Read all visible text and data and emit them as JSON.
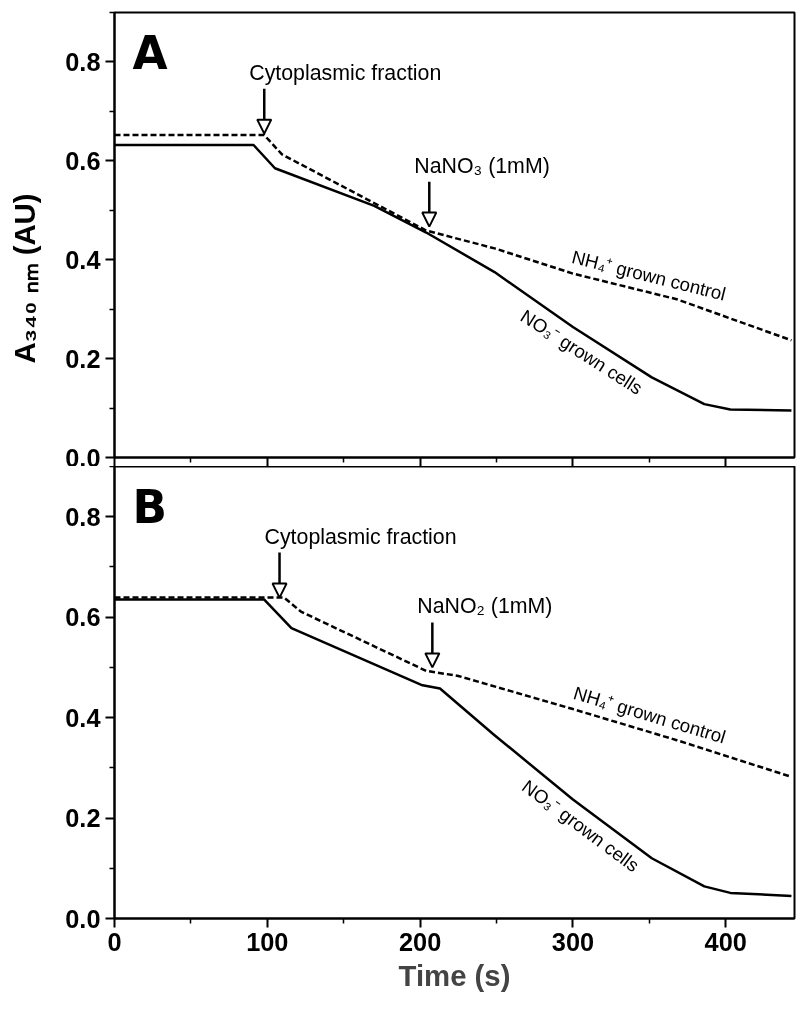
{
  "chart_data": [
    {
      "type": "line",
      "xlim": [
        0,
        445
      ],
      "ylim": [
        0,
        0.9
      ],
      "xticks": [
        0,
        100,
        200,
        300,
        400
      ],
      "yticks": [
        {
          "value": 0,
          "label": "0.0"
        },
        0.2,
        0.4,
        0.6,
        0.8
      ],
      "tick_labels": "y",
      "grid": false,
      "marker": "none",
      "ylabel": "A₃₄₀ ₙₘ (AU)",
      "series": [
        {
          "name": "NH₄⁺ grown control",
          "color": "#000000",
          "line_style": "dashed",
          "x": [
            0,
            98,
            109.6,
            204,
            248.7,
            300,
            368,
            443
          ],
          "values": [
            0.652,
            0.652,
            0.613,
            0.459,
            0.423,
            0.372,
            0.32,
            0.237
          ]
        },
        {
          "name": "NO₃⁻ grown cells",
          "color": "#000000",
          "line_style": "solid",
          "x": [
            0,
            91,
            105,
            170,
            204,
            248.7,
            300,
            351.6,
            386,
            403,
            443
          ],
          "values": [
            0.632,
            0.632,
            0.585,
            0.509,
            0.455,
            0.375,
            0.264,
            0.162,
            0.108,
            0.097,
            0.095
          ]
        }
      ],
      "annotations": [
        "A",
        {
          "text": "Cytoplasmic fraction",
          "x": 98,
          "y": 0.655
        },
        {
          "text": "NaNO₃ (1mM)",
          "x": 206,
          "y": 0.467
        }
      ]
    },
    {
      "type": "line",
      "xlim": [
        0,
        445
      ],
      "ylim": [
        0,
        0.9
      ],
      "xticks": [
        0,
        100,
        200,
        300,
        400
      ],
      "yticks": [
        {
          "value": 0,
          "label": "0.0"
        },
        0.2,
        0.4,
        0.6,
        0.8
      ],
      "grid": false,
      "marker": "none",
      "xlabel": "Time (s)",
      "series": [
        {
          "name": "NH₄⁺ grown control",
          "color": "#000000",
          "line_style": "dashed",
          "x": [
            0,
            111,
            122,
            204,
            225,
            300,
            368,
            443
          ],
          "values": [
            0.639,
            0.639,
            0.611,
            0.493,
            0.483,
            0.417,
            0.355,
            0.282
          ]
        },
        {
          "name": "NO₃⁻ grown cells",
          "color": "#000000",
          "line_style": "solid",
          "x": [
            0,
            98,
            115.8,
            200.8,
            213,
            248.7,
            300,
            351.6,
            386,
            403,
            443
          ],
          "values": [
            0.635,
            0.635,
            0.578,
            0.465,
            0.458,
            0.365,
            0.237,
            0.12,
            0.064,
            0.051,
            0.045
          ]
        }
      ],
      "annotations": [
        "B",
        {
          "text": "Cytoplasmic fraction",
          "x": 108,
          "y": 0.639
        },
        {
          "text": "NaNO₂ (1mM)",
          "x": 208,
          "y": 0.5
        }
      ]
    }
  ]
}
